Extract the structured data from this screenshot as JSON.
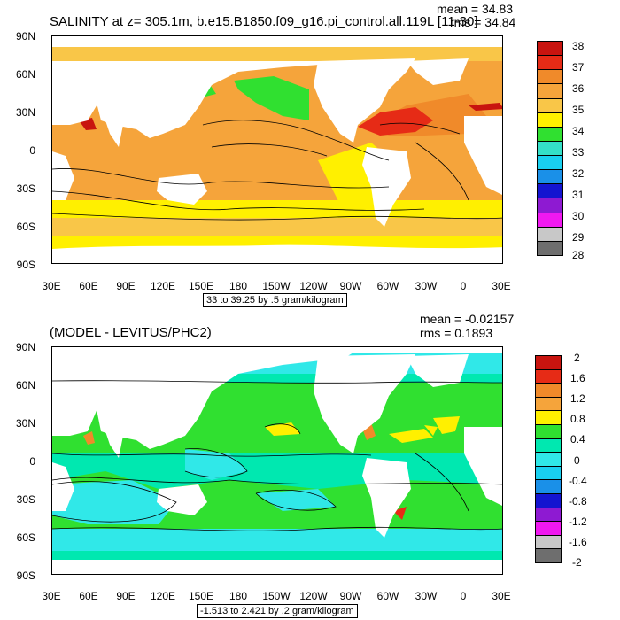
{
  "panel_top": {
    "title": "SALINITY at z= 305.1m, b.e15.B1850.f09_g16.pi_control.all.119L [11-30]",
    "mean": "mean = 34.83",
    "rms": "rms = 34.84",
    "range_note": "33 to 39.25 by .5 gram/kilogram",
    "colorbar": {
      "labels": [
        "38",
        "37",
        "36",
        "35",
        "34",
        "33",
        "32",
        "31",
        "30",
        "29",
        "28"
      ],
      "colors": [
        "#c8140f",
        "#e62b16",
        "#f08a2a",
        "#f5a43b",
        "#f9c648",
        "#fff000",
        "#30e030",
        "#34e0c8",
        "#19d0f0",
        "#1a90e8",
        "#1414d0",
        "#8e1ad2",
        "#f018f0",
        "#c8c8c8",
        "#6e6e6e"
      ]
    }
  },
  "panel_bottom": {
    "title": "(MODEL - LEVITUS/PHC2)",
    "mean": "mean = -0.02157",
    "rms": "rms = 0.1893",
    "range_note": "-1.513 to 2.421 by .2 gram/kilogram",
    "colorbar": {
      "labels": [
        "2",
        "1.6",
        "1.2",
        "0.8",
        "0.4",
        "0",
        "-0.4",
        "-0.8",
        "-1.2",
        "-1.6",
        "-2"
      ],
      "colors": [
        "#c8140f",
        "#e62b16",
        "#f08a2a",
        "#f5a43b",
        "#fff000",
        "#30e030",
        "#00e8b0",
        "#30e8e8",
        "#19d0f0",
        "#1a90e8",
        "#1414d0",
        "#8e1ad2",
        "#f018f0",
        "#c8c8c8",
        "#6e6e6e"
      ]
    }
  },
  "axes": {
    "lat_labels": [
      "90N",
      "60N",
      "30N",
      "0",
      "30S",
      "60S",
      "90S"
    ],
    "lon_labels": [
      "30E",
      "60E",
      "90E",
      "120E",
      "150E",
      "180",
      "150W",
      "120W",
      "90W",
      "60W",
      "30W",
      "0",
      "30E"
    ]
  }
}
